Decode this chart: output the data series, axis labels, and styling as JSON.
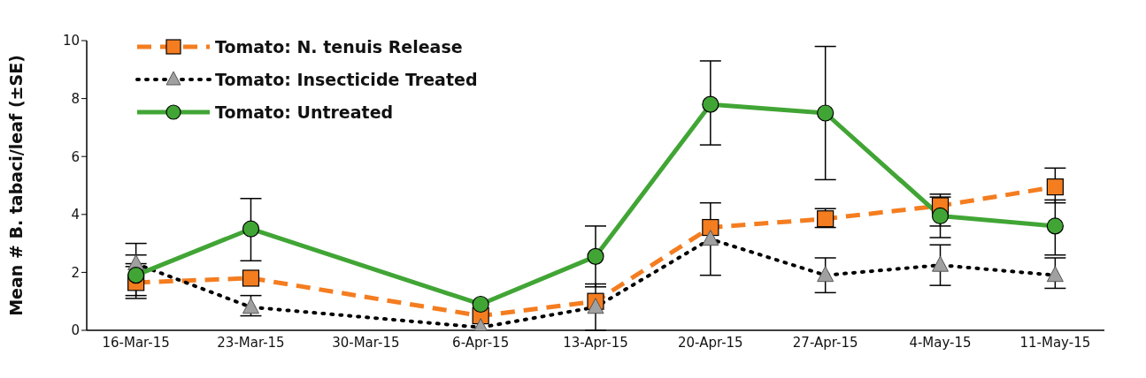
{
  "chart_data": {
    "type": "line",
    "ylabel": "Mean # B. tabaci/leaf (±SE)",
    "x": [
      "--03-16",
      "--03-23",
      "--04-06",
      "--04-13",
      "--04-20",
      "--04-27",
      "--05-04",
      "--05-11"
    ],
    "xlim": [
      "--03-13",
      "--05-14"
    ],
    "xticks": [
      {
        "value": "--03-16",
        "label": "16-Mar-15"
      },
      {
        "value": "--03-23",
        "label": "23-Mar-15"
      },
      {
        "value": "--03-30",
        "label": "30-Mar-15"
      },
      {
        "value": "--04-06",
        "label": "6-Apr-15"
      },
      {
        "value": "--04-13",
        "label": "13-Apr-15"
      },
      {
        "value": "--04-20",
        "label": "20-Apr-15"
      },
      {
        "value": "--04-27",
        "label": "27-Apr-15"
      },
      {
        "value": "--05-04",
        "label": "4-May-15"
      },
      {
        "value": "--05-11",
        "label": "11-May-15"
      }
    ],
    "ylim": [
      0,
      10
    ],
    "yticks": [
      0,
      2,
      4,
      6,
      8,
      10
    ],
    "grid": false,
    "legend": "top left",
    "series": [
      {
        "name": "Tomato: N. tenuis Release",
        "color": "#f47d20",
        "marker": "square",
        "line_style": "dashed",
        "values": [
          1.65,
          1.8,
          0.5,
          1.0,
          3.55,
          3.85,
          4.3,
          4.95
        ],
        "errors": [
          [
            1.1,
            2.2
          ],
          null,
          null,
          null,
          null,
          [
            3.55,
            4.2
          ],
          [
            3.6,
            4.6
          ],
          [
            4.4,
            5.6
          ]
        ]
      },
      {
        "name": "Tomato: Insecticide Treated",
        "color": "#000000",
        "marker": "triangle",
        "line_style": "dotted",
        "values": [
          2.3,
          0.8,
          0.1,
          0.8,
          3.15,
          1.9,
          2.25,
          1.9
        ],
        "errors": [
          [
            2.3,
            2.6
          ],
          [
            0.5,
            1.2
          ],
          null,
          [
            0,
            1.6
          ],
          [
            1.9,
            4.4
          ],
          [
            1.3,
            2.5
          ],
          [
            1.55,
            2.95
          ],
          [
            1.45,
            2.5
          ]
        ]
      },
      {
        "name": "Tomato: Untreated",
        "color": "#41a535",
        "marker": "circle",
        "line_style": "solid",
        "values": [
          1.9,
          3.5,
          0.9,
          2.55,
          7.8,
          7.5,
          3.95,
          3.6
        ],
        "errors": [
          [
            1.2,
            3.0
          ],
          [
            2.4,
            4.55
          ],
          null,
          [
            1.5,
            3.6
          ],
          [
            6.4,
            9.3
          ],
          [
            5.2,
            9.8
          ],
          [
            3.2,
            4.7
          ],
          [
            2.6,
            4.5
          ]
        ]
      }
    ]
  }
}
